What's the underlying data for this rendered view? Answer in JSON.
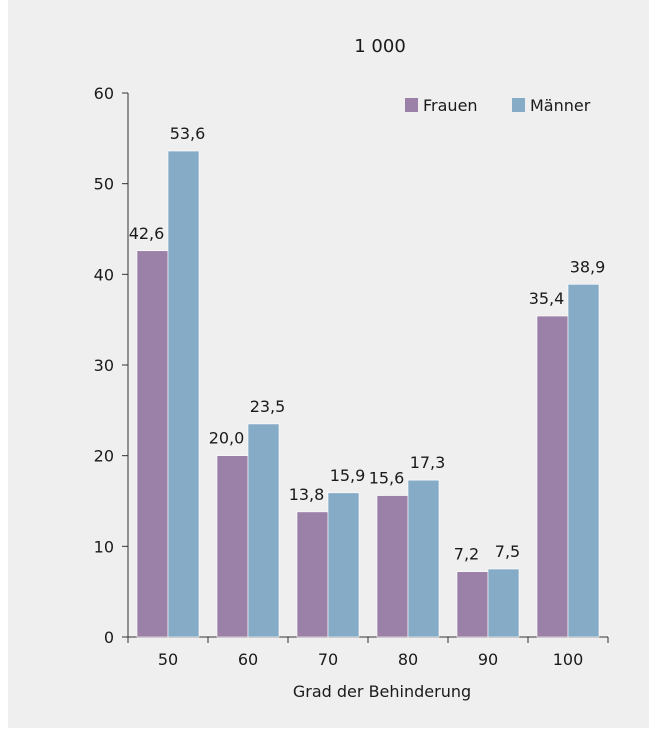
{
  "chart_data": {
    "type": "bar",
    "title": "1 000",
    "xlabel": "Grad der Behinderung",
    "ylabel": "",
    "categories": [
      "50",
      "60",
      "70",
      "80",
      "90",
      "100"
    ],
    "series": [
      {
        "name": "Frauen",
        "color": "#9b80a8",
        "values": [
          42.6,
          20.0,
          13.8,
          15.6,
          7.2,
          35.4
        ],
        "labels": [
          "42,6",
          "20,0",
          "13,8",
          "15,6",
          "7,2",
          "35,4"
        ]
      },
      {
        "name": "Männer",
        "color": "#86abc7",
        "values": [
          53.6,
          23.5,
          15.9,
          17.3,
          7.5,
          38.9
        ],
        "labels": [
          "53,6",
          "23,5",
          "15,9",
          "17,3",
          "7,5",
          "38,9"
        ]
      }
    ],
    "ylim": [
      0,
      60
    ],
    "yticks": [
      "0",
      "10",
      "20",
      "30",
      "40",
      "50",
      "60"
    ],
    "grid": false,
    "legend": "top-right"
  }
}
